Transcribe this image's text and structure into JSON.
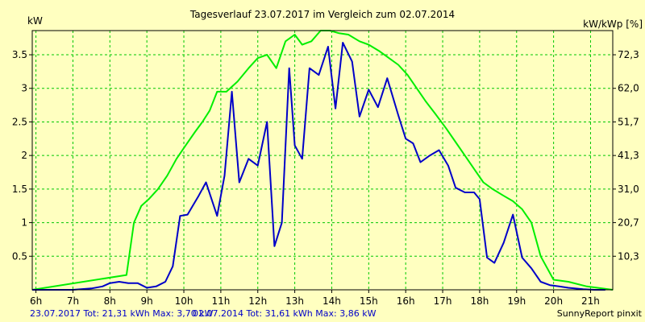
{
  "chart_data": {
    "type": "line",
    "title": "Tagesverlauf 23.07.2017 im Vergleich zum 02.07.2014",
    "ylabel_left": "kW",
    "ylabel_right": "kW/kWp [%]",
    "xlim": [
      5.9,
      21.6
    ],
    "ylim": [
      0,
      3.86
    ],
    "grid": true,
    "x_ticks": [
      {
        "x": 6,
        "label": "6h"
      },
      {
        "x": 7,
        "label": "7h"
      },
      {
        "x": 8,
        "label": "8h"
      },
      {
        "x": 9,
        "label": "9h"
      },
      {
        "x": 10,
        "label": "10h"
      },
      {
        "x": 11,
        "label": "11h"
      },
      {
        "x": 12,
        "label": "12h"
      },
      {
        "x": 13,
        "label": "13h"
      },
      {
        "x": 14,
        "label": "14h"
      },
      {
        "x": 15,
        "label": "15h"
      },
      {
        "x": 16,
        "label": "16h"
      },
      {
        "x": 17,
        "label": "17h"
      },
      {
        "x": 18,
        "label": "18h"
      },
      {
        "x": 19,
        "label": "19h"
      },
      {
        "x": 20,
        "label": "20h"
      },
      {
        "x": 21,
        "label": "21h"
      }
    ],
    "y_ticks_left": [
      {
        "y": 0.5,
        "label": "0.5"
      },
      {
        "y": 1,
        "label": "1"
      },
      {
        "y": 1.5,
        "label": "1.5"
      },
      {
        "y": 2,
        "label": "2"
      },
      {
        "y": 2.5,
        "label": "2.5"
      },
      {
        "y": 3,
        "label": "3"
      },
      {
        "y": 3.5,
        "label": "3.5"
      }
    ],
    "y_ticks_right": [
      {
        "y": 0.5,
        "label": "10,3"
      },
      {
        "y": 1,
        "label": "20,7"
      },
      {
        "y": 1.5,
        "label": "31,0"
      },
      {
        "y": 2,
        "label": "41,3"
      },
      {
        "y": 2.5,
        "label": "51,7"
      },
      {
        "y": 3,
        "label": "62,0"
      },
      {
        "y": 3.5,
        "label": "72,3"
      }
    ],
    "legend": {
      "left_text": "23.07.2017 Tot: 21,31 kWh Max: 3,70 kW",
      "right_text": "02.07.2014 Tot: 31,61 kWh Max: 3,86 kW",
      "credit": "SunnyReport pinxit"
    },
    "series": [
      {
        "color": "#0000c8",
        "x": [
          5.9,
          7.0,
          7.5,
          7.8,
          8.0,
          8.25,
          8.5,
          8.75,
          9.0,
          9.25,
          9.5,
          9.7,
          9.9,
          10.1,
          10.4,
          10.6,
          10.9,
          11.1,
          11.3,
          11.5,
          11.75,
          12.0,
          12.25,
          12.45,
          12.65,
          12.85,
          13.0,
          13.2,
          13.4,
          13.65,
          13.9,
          14.1,
          14.3,
          14.55,
          14.75,
          15.0,
          15.25,
          15.5,
          15.8,
          16.0,
          16.2,
          16.4,
          16.65,
          16.9,
          17.15,
          17.35,
          17.6,
          17.85,
          18.0,
          18.2,
          18.4,
          18.65,
          18.9,
          19.15,
          19.4,
          19.65,
          19.9,
          20.15,
          20.4,
          20.8,
          21.1,
          21.4
        ],
        "y": [
          0,
          0,
          0.02,
          0.05,
          0.1,
          0.12,
          0.1,
          0.1,
          0.03,
          0.05,
          0.12,
          0.35,
          1.1,
          1.12,
          1.4,
          1.6,
          1.1,
          1.7,
          2.95,
          1.6,
          1.95,
          1.85,
          2.5,
          0.65,
          1.0,
          3.3,
          2.15,
          1.95,
          3.3,
          3.2,
          3.62,
          2.7,
          3.68,
          3.4,
          2.58,
          2.98,
          2.72,
          3.15,
          2.6,
          2.25,
          2.18,
          1.9,
          2.0,
          2.08,
          1.85,
          1.52,
          1.45,
          1.45,
          1.35,
          0.48,
          0.4,
          0.7,
          1.12,
          0.48,
          0.32,
          0.12,
          0.07,
          0.05,
          0.03,
          0.01,
          0,
          0
        ]
      },
      {
        "color": "#00ee00",
        "x": [
          5.9,
          8.45,
          8.65,
          8.85,
          9.05,
          9.3,
          9.55,
          9.8,
          10.05,
          10.3,
          10.5,
          10.7,
          10.9,
          11.15,
          11.45,
          11.75,
          12.0,
          12.25,
          12.5,
          12.75,
          13.0,
          13.2,
          13.45,
          13.7,
          13.95,
          14.2,
          14.45,
          14.75,
          15.0,
          15.3,
          15.55,
          15.8,
          16.05,
          16.3,
          16.55,
          16.8,
          17.1,
          17.35,
          17.6,
          17.85,
          18.1,
          18.35,
          18.65,
          18.9,
          19.15,
          19.4,
          19.65,
          20.0,
          20.4,
          20.9,
          21.6
        ],
        "y": [
          0,
          0.22,
          1.0,
          1.25,
          1.35,
          1.5,
          1.7,
          1.95,
          2.15,
          2.35,
          2.5,
          2.67,
          2.95,
          2.95,
          3.1,
          3.3,
          3.45,
          3.5,
          3.3,
          3.7,
          3.8,
          3.65,
          3.7,
          3.86,
          3.86,
          3.82,
          3.8,
          3.7,
          3.65,
          3.55,
          3.45,
          3.35,
          3.2,
          3.0,
          2.8,
          2.62,
          2.4,
          2.2,
          2.0,
          1.8,
          1.6,
          1.5,
          1.4,
          1.32,
          1.2,
          1.0,
          0.5,
          0.15,
          0.12,
          0.05,
          0
        ]
      }
    ]
  }
}
